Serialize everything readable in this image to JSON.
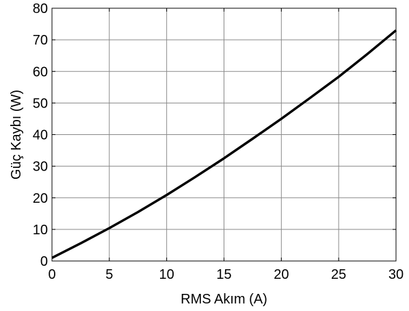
{
  "chart_data": {
    "type": "line",
    "title": "",
    "xlabel": "RMS Akım (A)",
    "ylabel": "Güç Kaybı (W)",
    "xlim": [
      0,
      30
    ],
    "ylim": [
      0,
      80
    ],
    "x_ticks": [
      "0",
      "5",
      "10",
      "15",
      "20",
      "25",
      "30"
    ],
    "y_ticks": [
      "0",
      "10",
      "20",
      "30",
      "40",
      "50",
      "60",
      "70",
      "80"
    ],
    "grid": true,
    "legend": "none",
    "series": [
      {
        "color": "#000000",
        "x": [
          0,
          2.5,
          5,
          7.5,
          10,
          12.5,
          15,
          17.5,
          20,
          22.5,
          25,
          27.5,
          30
        ],
        "y": [
          1.0,
          5.6,
          10.4,
          15.5,
          20.9,
          26.6,
          32.5,
          38.7,
          45.0,
          51.6,
          58.3,
          65.5,
          73.0
        ]
      }
    ]
  }
}
